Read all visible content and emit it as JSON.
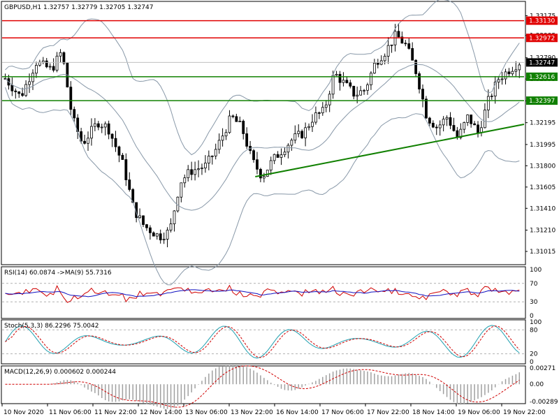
{
  "chart_data": [
    {
      "type": "candlestick",
      "symbol_header": "GBPUSD,H1  1.32757  1.32779  1.32705  1.32747",
      "ylim": [
        1.309,
        1.333
      ],
      "y_ticks": [
        "1.33175",
        "1.32995",
        "1.32790",
        "1.32595",
        "1.32395",
        "1.32195",
        "1.31995",
        "1.31800",
        "1.31605",
        "1.31410",
        "1.31210",
        "1.31015"
      ],
      "y_ticks_values": [
        1.33175,
        1.32995,
        1.3279,
        1.32595,
        1.32395,
        1.32195,
        1.31995,
        1.318,
        1.31605,
        1.3141,
        1.3121,
        1.31015
      ],
      "current_price": "1.32747",
      "current_price_value": 1.32747,
      "resistance_levels": [
        {
          "label": "1.33130",
          "value": 1.3313,
          "color": "#e00000"
        },
        {
          "label": "1.32972",
          "value": 1.32972,
          "color": "#e00000"
        }
      ],
      "support_levels": [
        {
          "label": "1.32616",
          "value": 1.32616,
          "color": "#108000"
        },
        {
          "label": "1.32397",
          "value": 1.32397,
          "color": "#108000"
        }
      ],
      "trendline": {
        "x_from": 0.485,
        "y_from": 1.317,
        "x_to": 1.0,
        "y_to": 1.3218,
        "color": "#108000"
      },
      "price_path": [
        [
          0.0,
          1.326
        ],
        [
          0.03,
          1.3243
        ],
        [
          0.06,
          1.3275
        ],
        [
          0.09,
          1.3268
        ],
        [
          0.11,
          1.3285
        ],
        [
          0.13,
          1.3225
        ],
        [
          0.15,
          1.32
        ],
        [
          0.18,
          1.322
        ],
        [
          0.2,
          1.3215
        ],
        [
          0.23,
          1.318
        ],
        [
          0.25,
          1.314
        ],
        [
          0.27,
          1.3125
        ],
        [
          0.3,
          1.3115
        ],
        [
          0.32,
          1.312
        ],
        [
          0.34,
          1.3165
        ],
        [
          0.36,
          1.3175
        ],
        [
          0.39,
          1.318
        ],
        [
          0.41,
          1.3195
        ],
        [
          0.44,
          1.3225
        ],
        [
          0.46,
          1.3215
        ],
        [
          0.48,
          1.3185
        ],
        [
          0.5,
          1.317
        ],
        [
          0.52,
          1.3185
        ],
        [
          0.54,
          1.3195
        ],
        [
          0.56,
          1.3205
        ],
        [
          0.58,
          1.321
        ],
        [
          0.6,
          1.3225
        ],
        [
          0.62,
          1.323
        ],
        [
          0.64,
          1.3265
        ],
        [
          0.66,
          1.3255
        ],
        [
          0.68,
          1.3245
        ],
        [
          0.7,
          1.325
        ],
        [
          0.72,
          1.3275
        ],
        [
          0.74,
          1.3285
        ],
        [
          0.76,
          1.33
        ],
        [
          0.78,
          1.329
        ],
        [
          0.8,
          1.3265
        ],
        [
          0.82,
          1.3225
        ],
        [
          0.84,
          1.3215
        ],
        [
          0.86,
          1.3225
        ],
        [
          0.88,
          1.3205
        ],
        [
          0.9,
          1.3225
        ],
        [
          0.92,
          1.321
        ],
        [
          0.94,
          1.324
        ],
        [
          0.96,
          1.326
        ],
        [
          0.98,
          1.3268
        ],
        [
          1.0,
          1.32747
        ]
      ]
    },
    {
      "type": "line",
      "panel_header": "RSI(14) 60.0874  ->MA(9) 55.7316",
      "ylim": [
        0,
        100
      ],
      "y_ticks": [
        "100",
        "70",
        "30",
        "0"
      ],
      "y_ticks_values": [
        100,
        70,
        30,
        0
      ],
      "series": [
        {
          "name": "RSI(14)",
          "color": "#d00000"
        },
        {
          "name": "MA(9)",
          "color": "#1010c0"
        }
      ]
    },
    {
      "type": "line",
      "panel_header": "Stoch(5,3,3) 86.2296  75.0042",
      "ylim": [
        0,
        100
      ],
      "y_ticks": [
        "100",
        "80",
        "20",
        "0"
      ],
      "y_ticks_values": [
        100,
        80,
        20,
        0
      ],
      "series": [
        {
          "name": "Stoch",
          "color": "#20a0b0"
        },
        {
          "name": "Signal",
          "color": "#d00000"
        }
      ]
    },
    {
      "type": "bar",
      "panel_header": "MACD(12,26,9) 0.000602  0.000244",
      "y_ticks": [
        "0.00271",
        "0.00",
        "-0.00289"
      ],
      "y_ticks_values": [
        0.00271,
        0.0,
        -0.00289
      ]
    }
  ],
  "x_axis": {
    "labels": [
      "10 Nov 2020",
      "11 Nov 06:00",
      "11 Nov 22:00",
      "12 Nov 14:00",
      "13 Nov 06:00",
      "13 Nov 22:00",
      "16 Nov 14:00",
      "17 Nov 06:00",
      "17 Nov 22:00",
      "18 Nov 14:00",
      "19 Nov 06:00",
      "19 Nov 22:00"
    ]
  }
}
